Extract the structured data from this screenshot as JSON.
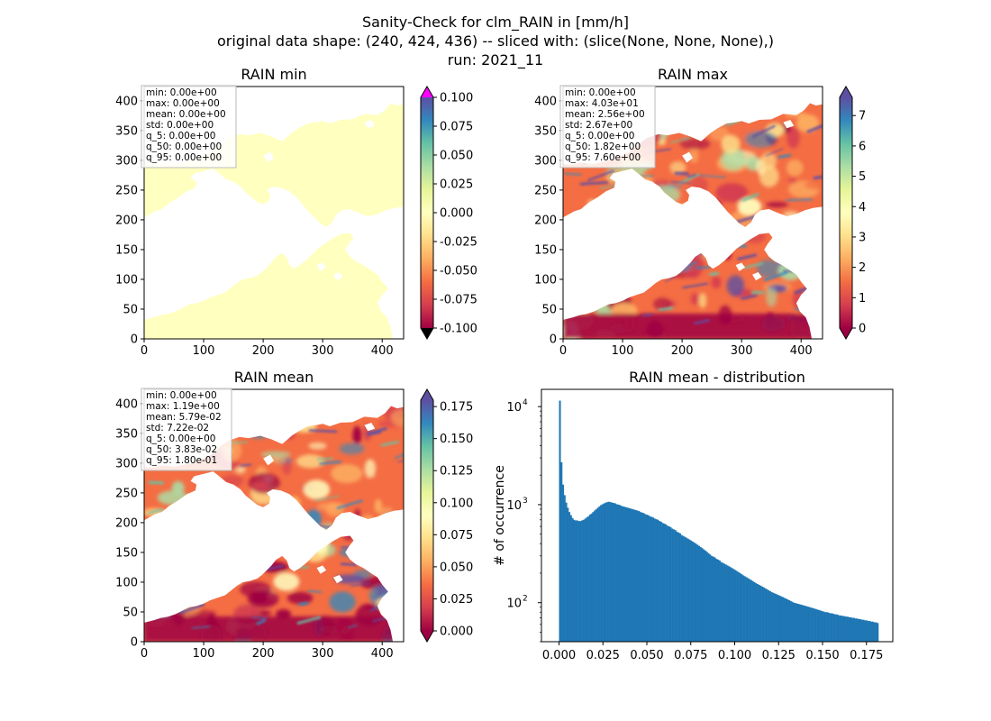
{
  "figure": {
    "title_line1": "Sanity-Check for clm_RAIN in [mm/h]",
    "title_line2": "original data shape: (240, 424, 436) -- sliced with: (slice(None, None, None),)",
    "title_line3": "run: 2021_11"
  },
  "colors": {
    "spectral_stops": [
      "#9e0142",
      "#d53e4f",
      "#f46d43",
      "#fdae61",
      "#fee08b",
      "#ffffbf",
      "#e6f598",
      "#abdda4",
      "#66c2a5",
      "#3288bd",
      "#5e4fa2"
    ],
    "min_field": "#ffffbf",
    "extend_over_min_panel": "#ff00ff",
    "extend_under_min_panel": "#000000",
    "histogram_bar": "#1f77b4",
    "stats_box_border": "#bbbbbb"
  },
  "chart_data": [
    {
      "type": "heatmap",
      "title": "RAIN min",
      "xlim": [
        0,
        436
      ],
      "ylim": [
        0,
        424
      ],
      "x_ticks": [
        "0",
        "100",
        "200",
        "300",
        "400"
      ],
      "y_ticks": [
        "0",
        "50",
        "100",
        "150",
        "200",
        "250",
        "300",
        "350",
        "400"
      ],
      "colorbar": {
        "range": [
          -0.1,
          0.1
        ],
        "ticks": [
          "-0.100",
          "-0.075",
          "-0.050",
          "-0.025",
          "0.000",
          "0.025",
          "0.050",
          "0.075",
          "0.100"
        ],
        "extend": "both"
      },
      "stats": [
        "min: 0.00e+00",
        "max: 0.00e+00",
        "mean: 0.00e+00",
        "std: 0.00e+00",
        "q_5: 0.00e+00",
        "q_50: 0.00e+00",
        "q_95: 0.00e+00"
      ]
    },
    {
      "type": "heatmap",
      "title": "RAIN max",
      "xlim": [
        0,
        436
      ],
      "ylim": [
        0,
        424
      ],
      "x_ticks": [
        "0",
        "100",
        "200",
        "300",
        "400"
      ],
      "y_ticks": [
        "0",
        "50",
        "100",
        "150",
        "200",
        "250",
        "300",
        "350",
        "400"
      ],
      "colorbar": {
        "range": [
          0,
          7.6
        ],
        "ticks": [
          "0",
          "1",
          "2",
          "3",
          "4",
          "5",
          "6",
          "7"
        ],
        "extend": "both"
      },
      "stats": [
        "min: 0.00e+00",
        "max: 4.03e+01",
        "mean: 2.56e+00",
        "std: 2.67e+00",
        "q_5: 0.00e+00",
        "q_50: 1.82e+00",
        "q_95: 7.60e+00"
      ]
    },
    {
      "type": "heatmap",
      "title": "RAIN mean",
      "xlim": [
        0,
        436
      ],
      "ylim": [
        0,
        424
      ],
      "x_ticks": [
        "0",
        "100",
        "200",
        "300",
        "400"
      ],
      "y_ticks": [
        "0",
        "50",
        "100",
        "150",
        "200",
        "250",
        "300",
        "350",
        "400"
      ],
      "colorbar": {
        "range": [
          0,
          0.18
        ],
        "ticks": [
          "0.000",
          "0.025",
          "0.050",
          "0.075",
          "0.100",
          "0.125",
          "0.150",
          "0.175"
        ],
        "extend": "both"
      },
      "stats": [
        "min: 0.00e+00",
        "max: 1.19e+00",
        "mean: 5.79e-02",
        "std: 7.22e-02",
        "q_5: 0.00e+00",
        "q_50: 3.83e-02",
        "q_95: 1.80e-01"
      ]
    },
    {
      "type": "bar",
      "title": "RAIN mean - distribution",
      "xlabel": "",
      "ylabel": "# of occurrence",
      "log_y": true,
      "xlim": [
        -0.01,
        0.19
      ],
      "ylim": [
        40,
        15000
      ],
      "x_ticks": [
        "0.000",
        "0.025",
        "0.050",
        "0.075",
        "0.100",
        "0.125",
        "0.150",
        "0.175"
      ],
      "y_ticks": [
        {
          "base": "10",
          "exp": "2",
          "value": 100
        },
        {
          "base": "10",
          "exp": "3",
          "value": 1000
        },
        {
          "base": "10",
          "exp": "4",
          "value": 10000
        }
      ],
      "bin_start": 0.0,
      "bin_width": 0.0009,
      "values": [
        11500,
        2700,
        1600,
        1250,
        1050,
        930,
        840,
        780,
        730,
        700,
        690,
        690,
        680,
        680,
        690,
        700,
        720,
        740,
        760,
        790,
        810,
        840,
        870,
        900,
        930,
        960,
        990,
        1010,
        1030,
        1050,
        1060,
        1070,
        1060,
        1050,
        1040,
        1030,
        1010,
        1000,
        990,
        970,
        960,
        950,
        940,
        930,
        920,
        910,
        900,
        890,
        880,
        870,
        860,
        840,
        830,
        820,
        800,
        790,
        780,
        760,
        750,
        740,
        720,
        710,
        700,
        680,
        670,
        650,
        640,
        630,
        610,
        600,
        590,
        570,
        560,
        550,
        530,
        520,
        510,
        490,
        480,
        470,
        460,
        450,
        440,
        430,
        420,
        410,
        400,
        390,
        380,
        370,
        360,
        350,
        340,
        330,
        320,
        310,
        300,
        295,
        290,
        280,
        275,
        270,
        260,
        255,
        250,
        245,
        240,
        235,
        230,
        225,
        220,
        215,
        210,
        205,
        200,
        195,
        190,
        186,
        182,
        178,
        174,
        170,
        166,
        162,
        158,
        155,
        152,
        149,
        146,
        143,
        140,
        137,
        134,
        131,
        128,
        126,
        124,
        122,
        120,
        118,
        116,
        114,
        112,
        110,
        108,
        106,
        104,
        102,
        100,
        99,
        98,
        97,
        96,
        95,
        94,
        93,
        92,
        91,
        90,
        89,
        88,
        87,
        86,
        85,
        84,
        83,
        82,
        81,
        80,
        80,
        79,
        78,
        78,
        77,
        76,
        76,
        75,
        74,
        74,
        73,
        73,
        72,
        72,
        71,
        71,
        70,
        70,
        69,
        69,
        68,
        68,
        67,
        67,
        66,
        66,
        65,
        65,
        64,
        64,
        63,
        63,
        62
      ]
    }
  ]
}
